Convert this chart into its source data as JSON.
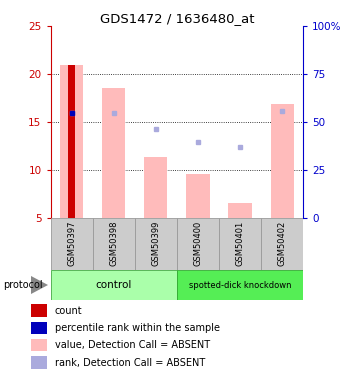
{
  "title": "GDS1472 / 1636480_at",
  "samples": [
    "GSM50397",
    "GSM50398",
    "GSM50399",
    "GSM50400",
    "GSM50401",
    "GSM50402"
  ],
  "bar_values_pink": [
    20.9,
    18.5,
    11.3,
    9.5,
    6.5,
    16.9
  ],
  "bar_base": 5.0,
  "red_bar_sample": 0,
  "red_bar_value": 20.9,
  "blue_square_sample": 0,
  "blue_square_value": 15.9,
  "rank_squares": [
    {
      "sample": 0,
      "value": 15.9
    },
    {
      "sample": 1,
      "value": 15.9
    },
    {
      "sample": 2,
      "value": 14.3
    },
    {
      "sample": 3,
      "value": 12.9
    },
    {
      "sample": 4,
      "value": 12.4
    },
    {
      "sample": 5,
      "value": 16.1
    }
  ],
  "ylim_left": [
    5,
    25
  ],
  "ylim_right": [
    0,
    100
  ],
  "yticks_left": [
    5,
    10,
    15,
    20,
    25
  ],
  "yticks_right": [
    0,
    25,
    50,
    75,
    100
  ],
  "ytick_labels_right": [
    "0",
    "25",
    "50",
    "75",
    "100%"
  ],
  "control_label": "control",
  "knockdown_label": "spotted-dick knockdown",
  "control_indices": [
    0,
    1,
    2
  ],
  "knockdown_indices": [
    3,
    4,
    5
  ],
  "protocol_label": "protocol",
  "legend_items": [
    {
      "label": "count",
      "color": "#cc0000"
    },
    {
      "label": "percentile rank within the sample",
      "color": "#0000bb"
    },
    {
      "label": "value, Detection Call = ABSENT",
      "color": "#ffbbbb"
    },
    {
      "label": "rank, Detection Call = ABSENT",
      "color": "#aaaadd"
    }
  ],
  "color_red": "#cc0000",
  "color_blue": "#0000bb",
  "color_pink": "#ffbbbb",
  "color_rank": "#aaaadd",
  "color_control_light": "#aaffaa",
  "color_control_dark": "#66ee66",
  "color_knockdown": "#55ee55",
  "color_axis_left": "#cc0000",
  "color_axis_right": "#0000cc",
  "bar_width": 0.55,
  "figsize": [
    3.61,
    3.75
  ],
  "dpi": 100
}
